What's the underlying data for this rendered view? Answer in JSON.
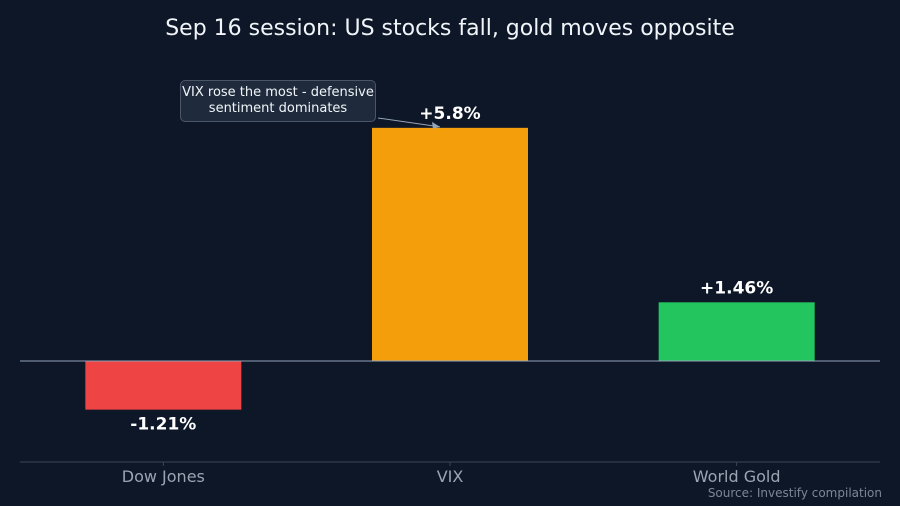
{
  "chart_data": {
    "type": "bar",
    "title": "Sep 16 session: US stocks fall, gold moves opposite",
    "categories": [
      "Dow Jones",
      "VIX",
      "World Gold"
    ],
    "values": [
      -1.21,
      5.8,
      1.46
    ],
    "value_labels": [
      "-1.21%",
      "+5.8%",
      "+1.46%"
    ],
    "colors": [
      "#ef4444",
      "#f59e0b",
      "#22c55e"
    ],
    "xlabel": "",
    "ylabel": "",
    "ylim": [
      -2.5,
      8.0
    ],
    "grid": false,
    "annotation": {
      "text": "VIX rose the most - defensive sentiment dominates",
      "target_category": "VIX"
    },
    "source": "Source: Investify compilation"
  }
}
